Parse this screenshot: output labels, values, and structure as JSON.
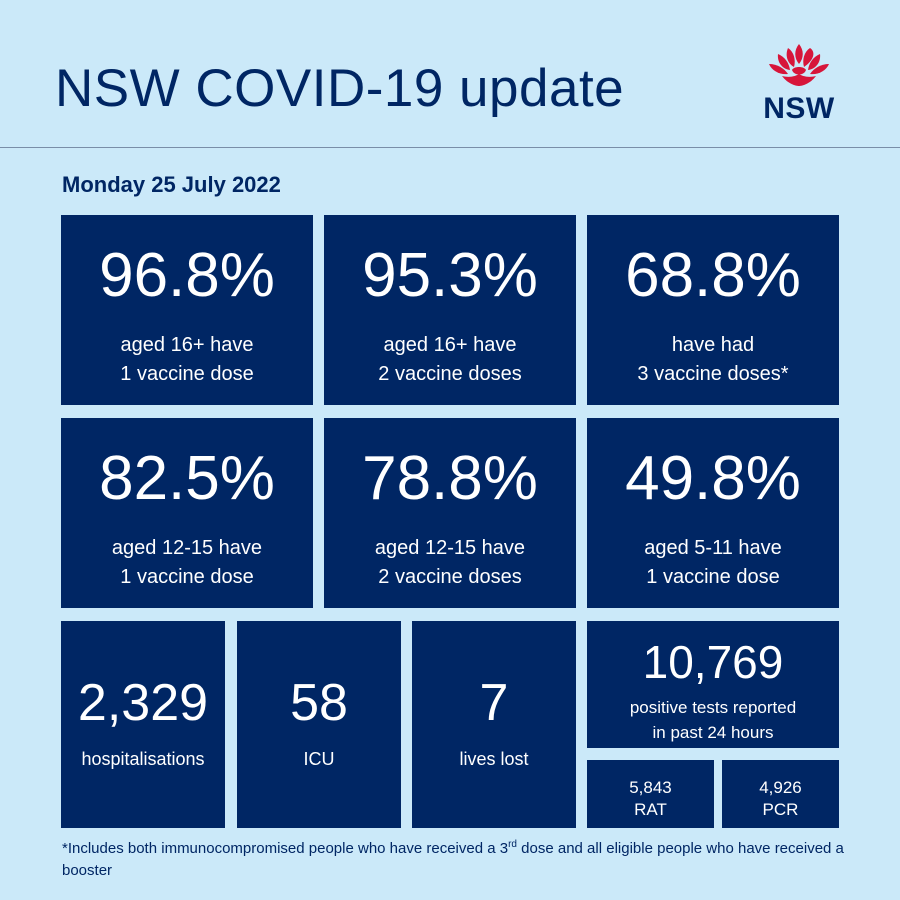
{
  "title": "NSW COVID-19 update",
  "logo": {
    "text": "NSW",
    "icon": "waratah-flower-icon",
    "color": "#d7153a"
  },
  "date": "Monday 25 July 2022",
  "vaccine": [
    {
      "value": "96.8%",
      "line1": "aged 16+ have",
      "line2": "1 vaccine dose"
    },
    {
      "value": "95.3%",
      "line1": "aged 16+ have",
      "line2": "2 vaccine doses"
    },
    {
      "value": "68.8%",
      "line1": "have had",
      "line2": "3 vaccine doses*"
    },
    {
      "value": "82.5%",
      "line1": "aged 12-15 have",
      "line2": "1 vaccine dose"
    },
    {
      "value": "78.8%",
      "line1": "aged 12-15 have",
      "line2": "2 vaccine doses"
    },
    {
      "value": "49.8%",
      "line1": "aged 5-11 have",
      "line2": "1 vaccine dose"
    }
  ],
  "stats": {
    "hospitalisations": {
      "value": "2,329",
      "label": "hospitalisations"
    },
    "icu": {
      "value": "58",
      "label": "ICU"
    },
    "deaths": {
      "value": "7",
      "label": "lives lost"
    }
  },
  "tests": {
    "value": "10,769",
    "line1": "positive tests reported",
    "line2": "in past 24 hours",
    "rat": {
      "value": "5,843",
      "label": "RAT"
    },
    "pcr": {
      "value": "4,926",
      "label": "PCR"
    }
  },
  "footnote": {
    "part1": "*Includes both immunocompromised people who have received a 3",
    "sup": "rd",
    "part2": " dose and all eligible people who have received a booster"
  },
  "colors": {
    "background": "#cbe9f9",
    "tile": "#002664",
    "text": "#ffffff"
  }
}
